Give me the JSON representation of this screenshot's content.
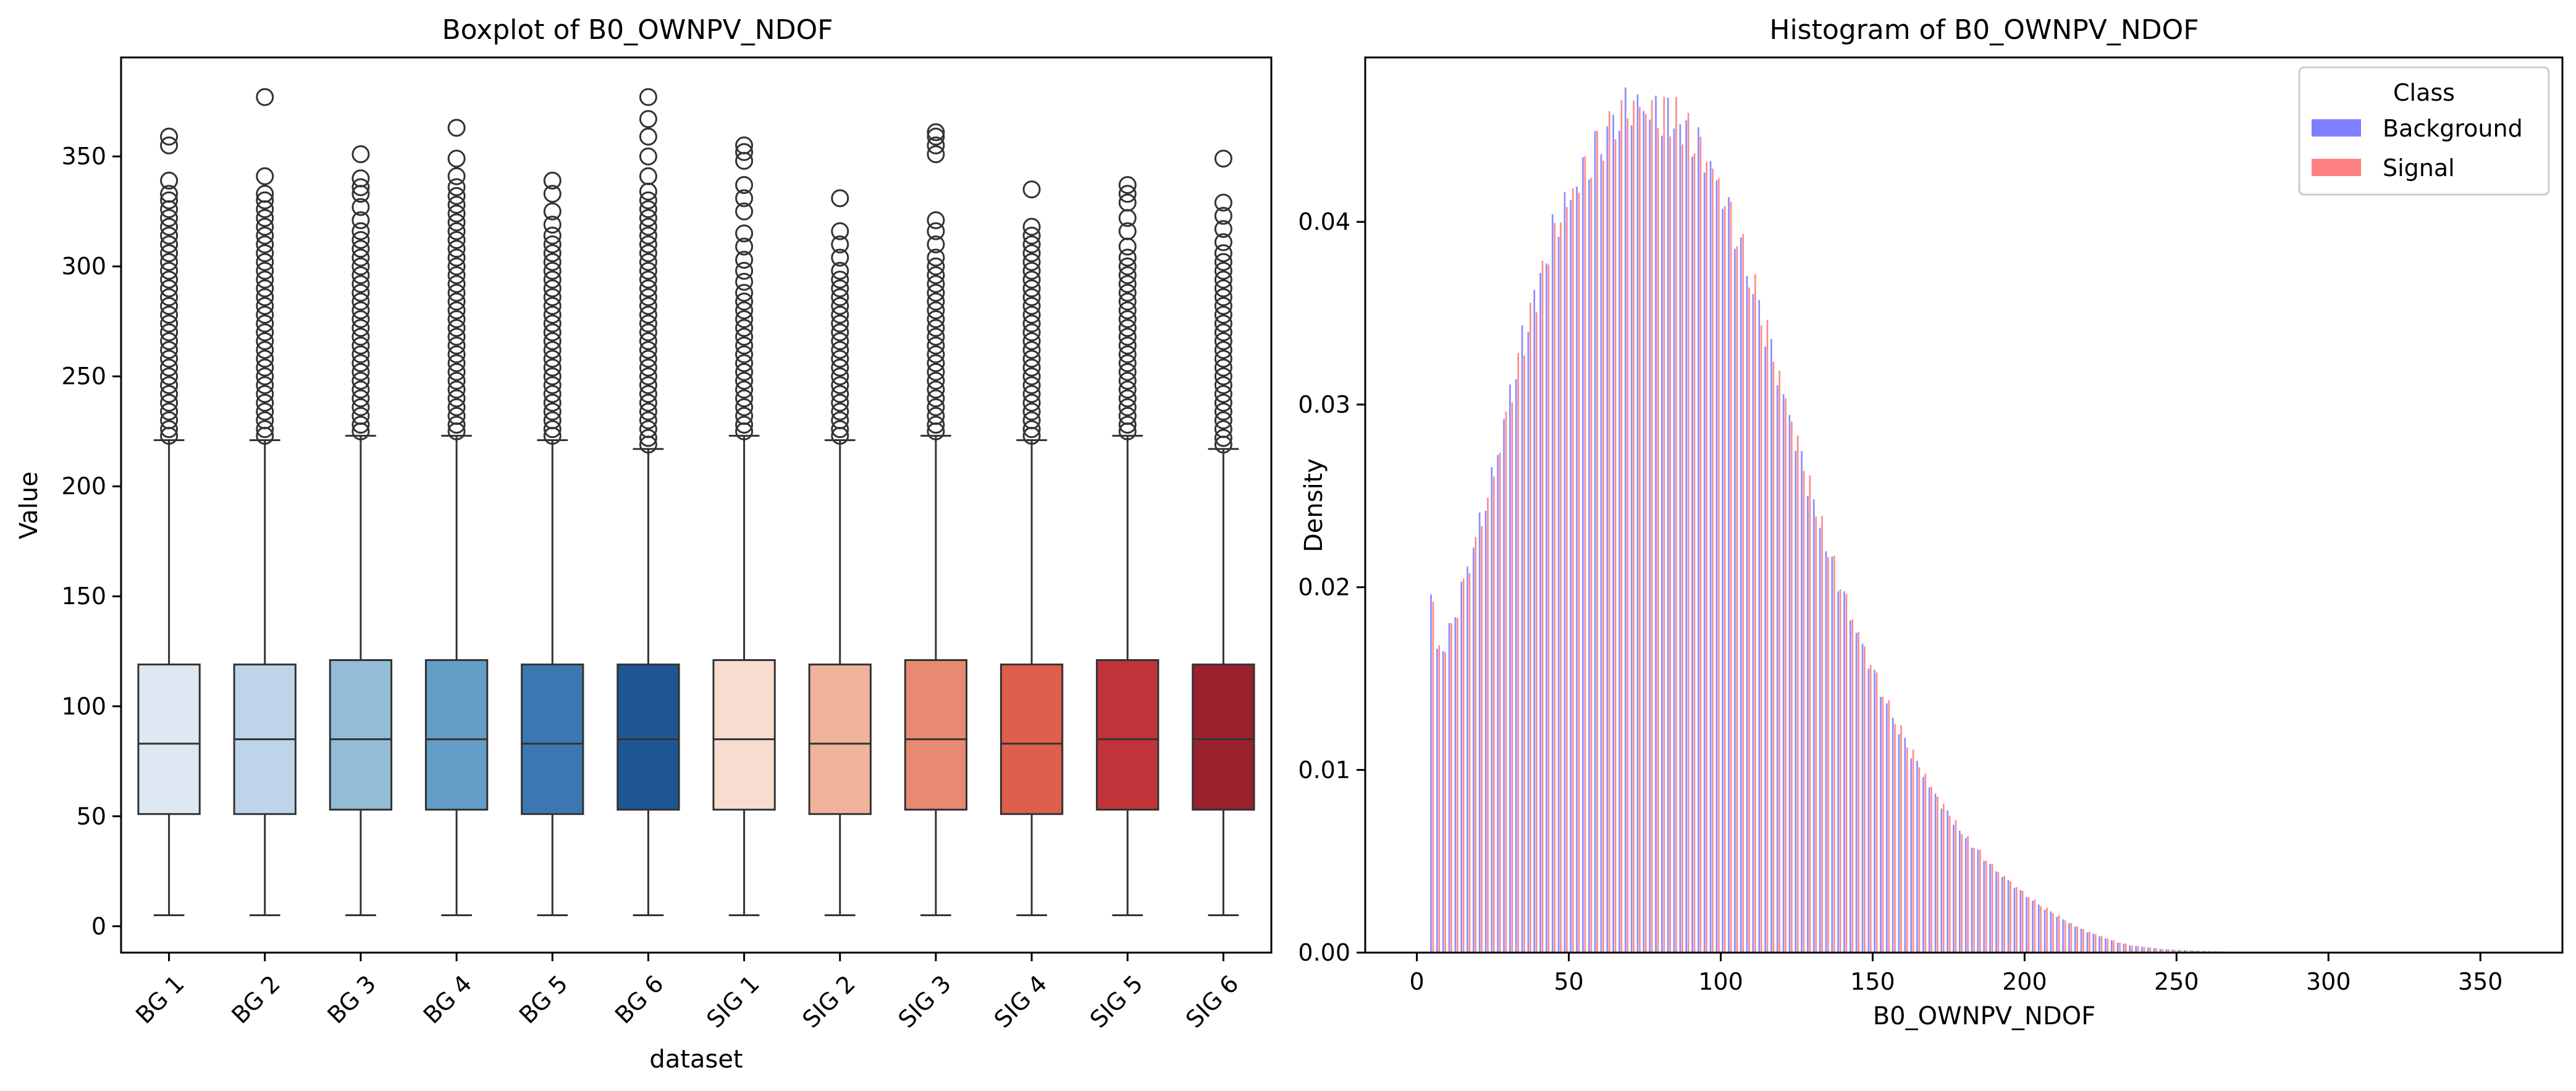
{
  "chart_data": [
    {
      "type": "box",
      "title": "Boxplot of B0_OWNPV_NDOF",
      "xlabel": "dataset",
      "ylabel": "Value",
      "ylim": [
        -12,
        395
      ],
      "yticks": [
        0,
        50,
        100,
        150,
        200,
        250,
        300,
        350
      ],
      "grid": false,
      "categories": [
        "BG 1",
        "BG 2",
        "BG 3",
        "BG 4",
        "BG 5",
        "BG 6",
        "SIG 1",
        "SIG 2",
        "SIG 3",
        "SIG 4",
        "SIG 5",
        "SIG 6"
      ],
      "colors": [
        "#dde8f3",
        "#bed5e9",
        "#93bcd6",
        "#649dc5",
        "#3b78b1",
        "#1e5693",
        "#f8dccf",
        "#efb39c",
        "#e88a72",
        "#de5f4d",
        "#c03439",
        "#98212c"
      ],
      "boxes": [
        {
          "min": 5,
          "q1": 51,
          "median": 83,
          "q3": 119,
          "max": 221,
          "outliers": [
            223,
            226,
            230,
            234,
            238,
            242,
            246,
            250,
            254,
            258,
            262,
            266,
            270,
            274,
            278,
            282,
            286,
            290,
            294,
            298,
            302,
            306,
            310,
            314,
            318,
            322,
            326,
            330,
            333,
            339,
            355,
            359
          ]
        },
        {
          "min": 5,
          "q1": 51,
          "median": 85,
          "q3": 119,
          "max": 221,
          "outliers": [
            223,
            226,
            230,
            234,
            238,
            242,
            246,
            250,
            254,
            258,
            262,
            266,
            270,
            274,
            278,
            282,
            286,
            290,
            294,
            298,
            302,
            306,
            310,
            314,
            318,
            322,
            326,
            330,
            333,
            341,
            377
          ]
        },
        {
          "min": 5,
          "q1": 53,
          "median": 85,
          "q3": 121,
          "max": 223,
          "outliers": [
            225,
            228,
            232,
            236,
            240,
            244,
            248,
            252,
            256,
            260,
            264,
            268,
            272,
            276,
            280,
            284,
            288,
            292,
            296,
            300,
            304,
            308,
            312,
            316,
            321,
            327,
            333,
            336,
            340,
            351
          ]
        },
        {
          "min": 5,
          "q1": 53,
          "median": 85,
          "q3": 121,
          "max": 223,
          "outliers": [
            225,
            228,
            232,
            236,
            240,
            244,
            248,
            252,
            256,
            260,
            264,
            268,
            272,
            276,
            280,
            284,
            288,
            292,
            296,
            300,
            304,
            308,
            312,
            316,
            320,
            324,
            328,
            332,
            336,
            341,
            349,
            363
          ]
        },
        {
          "min": 5,
          "q1": 51,
          "median": 83,
          "q3": 119,
          "max": 221,
          "outliers": [
            223,
            226,
            230,
            234,
            238,
            242,
            246,
            250,
            254,
            258,
            262,
            266,
            270,
            274,
            278,
            282,
            286,
            290,
            294,
            298,
            302,
            306,
            310,
            314,
            319,
            325,
            333,
            339
          ]
        },
        {
          "min": 5,
          "q1": 53,
          "median": 85,
          "q3": 119,
          "max": 217,
          "outliers": [
            219,
            222,
            226,
            230,
            234,
            238,
            242,
            246,
            250,
            254,
            258,
            262,
            266,
            270,
            274,
            278,
            282,
            286,
            290,
            294,
            298,
            302,
            306,
            310,
            314,
            318,
            322,
            326,
            330,
            334,
            341,
            350,
            359,
            367,
            377
          ]
        },
        {
          "min": 5,
          "q1": 53,
          "median": 85,
          "q3": 121,
          "max": 223,
          "outliers": [
            225,
            228,
            232,
            236,
            240,
            244,
            248,
            252,
            256,
            260,
            264,
            268,
            272,
            276,
            280,
            284,
            288,
            293,
            298,
            303,
            309,
            315,
            325,
            331,
            337,
            348,
            352,
            355
          ]
        },
        {
          "min": 5,
          "q1": 51,
          "median": 83,
          "q3": 119,
          "max": 221,
          "outliers": [
            223,
            226,
            230,
            234,
            238,
            242,
            246,
            250,
            254,
            258,
            262,
            266,
            270,
            274,
            278,
            282,
            286,
            290,
            294,
            298,
            304,
            310,
            316,
            331
          ]
        },
        {
          "min": 5,
          "q1": 53,
          "median": 85,
          "q3": 121,
          "max": 223,
          "outliers": [
            225,
            228,
            232,
            236,
            240,
            244,
            248,
            252,
            256,
            260,
            264,
            268,
            272,
            276,
            280,
            284,
            288,
            292,
            296,
            300,
            304,
            310,
            316,
            321,
            351,
            355,
            359,
            361
          ]
        },
        {
          "min": 5,
          "q1": 51,
          "median": 83,
          "q3": 119,
          "max": 221,
          "outliers": [
            223,
            226,
            230,
            234,
            238,
            242,
            246,
            250,
            254,
            258,
            262,
            266,
            270,
            274,
            278,
            282,
            286,
            290,
            294,
            298,
            302,
            306,
            310,
            314,
            318,
            335
          ]
        },
        {
          "min": 5,
          "q1": 53,
          "median": 85,
          "q3": 121,
          "max": 223,
          "outliers": [
            225,
            228,
            232,
            236,
            240,
            244,
            248,
            252,
            256,
            260,
            264,
            268,
            272,
            276,
            280,
            284,
            288,
            292,
            296,
            300,
            304,
            309,
            316,
            322,
            329,
            333,
            337
          ]
        },
        {
          "min": 5,
          "q1": 53,
          "median": 85,
          "q3": 119,
          "max": 217,
          "outliers": [
            219,
            222,
            226,
            230,
            234,
            238,
            242,
            246,
            250,
            254,
            258,
            262,
            266,
            270,
            274,
            278,
            282,
            286,
            290,
            294,
            298,
            302,
            306,
            311,
            317,
            323,
            329,
            349
          ]
        }
      ]
    },
    {
      "type": "histogram",
      "title": "Histogram of B0_OWNPV_NDOF",
      "xlabel": "B0_OWNPV_NDOF",
      "ylabel": "Density",
      "xlim": [
        -17,
        377
      ],
      "ylim": [
        0,
        0.049
      ],
      "xticks": [
        0,
        50,
        100,
        150,
        200,
        250,
        300,
        350
      ],
      "yticks": [
        "0.00",
        "0.01",
        "0.02",
        "0.03",
        "0.04"
      ],
      "grid": false,
      "legend": {
        "title": "Class",
        "placement": "top-right"
      },
      "bin_step": 2,
      "bin_start": 5,
      "series": [
        {
          "name": "Background",
          "color": "#8080ff",
          "offset": -0.35
        },
        {
          "name": "Signal",
          "color": "#ff8080",
          "offset": 0.35
        }
      ],
      "density_profile": [
        [
          5,
          0.0195
        ],
        [
          7,
          0.0165
        ],
        [
          10,
          0.017
        ],
        [
          15,
          0.02
        ],
        [
          20,
          0.023
        ],
        [
          25,
          0.026
        ],
        [
          30,
          0.03
        ],
        [
          35,
          0.0335
        ],
        [
          40,
          0.0365
        ],
        [
          45,
          0.0395
        ],
        [
          50,
          0.0412
        ],
        [
          55,
          0.0428
        ],
        [
          60,
          0.0442
        ],
        [
          65,
          0.0455
        ],
        [
          70,
          0.0464
        ],
        [
          75,
          0.0462
        ],
        [
          80,
          0.0459
        ],
        [
          85,
          0.0457
        ],
        [
          90,
          0.0448
        ],
        [
          95,
          0.0436
        ],
        [
          100,
          0.0418
        ],
        [
          105,
          0.0395
        ],
        [
          110,
          0.0368
        ],
        [
          115,
          0.034
        ],
        [
          120,
          0.031
        ],
        [
          125,
          0.028
        ],
        [
          130,
          0.025
        ],
        [
          135,
          0.0222
        ],
        [
          140,
          0.0198
        ],
        [
          145,
          0.0175
        ],
        [
          150,
          0.0155
        ],
        [
          155,
          0.0135
        ],
        [
          160,
          0.0118
        ],
        [
          165,
          0.0103
        ],
        [
          170,
          0.0088
        ],
        [
          175,
          0.0076
        ],
        [
          180,
          0.0064
        ],
        [
          185,
          0.0055
        ],
        [
          190,
          0.0046
        ],
        [
          195,
          0.0039
        ],
        [
          200,
          0.0032
        ],
        [
          205,
          0.0026
        ],
        [
          210,
          0.0021
        ],
        [
          215,
          0.0016
        ],
        [
          220,
          0.0012
        ],
        [
          225,
          0.0009
        ],
        [
          230,
          0.0006
        ],
        [
          235,
          0.0004
        ],
        [
          240,
          0.0003
        ],
        [
          245,
          0.0002
        ],
        [
          250,
          0.00015
        ],
        [
          260,
          8e-05
        ],
        [
          270,
          4e-05
        ],
        [
          280,
          2e-05
        ],
        [
          290,
          1e-05
        ],
        [
          300,
          0.0
        ]
      ]
    }
  ]
}
